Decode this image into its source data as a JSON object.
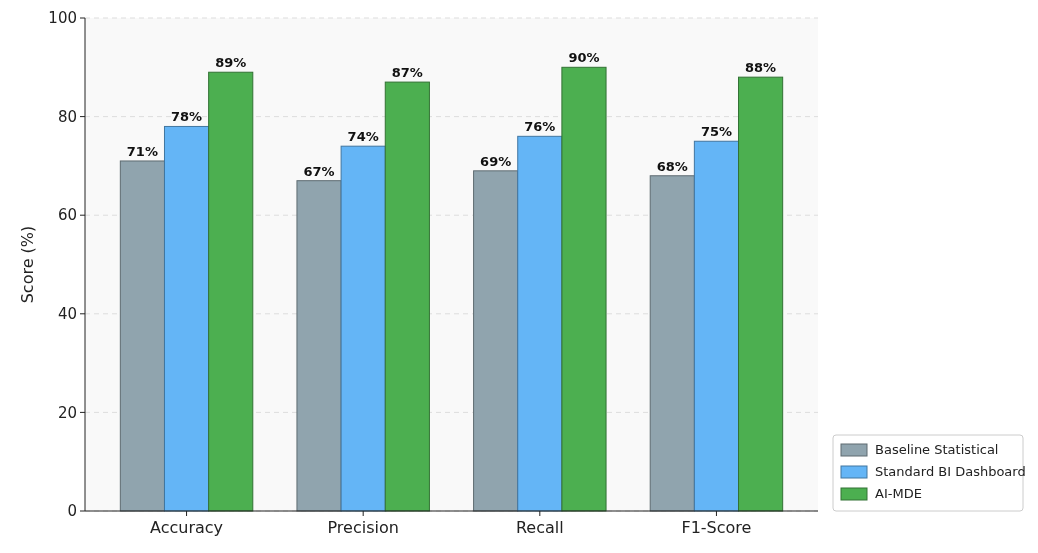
{
  "chart_data": {
    "type": "bar",
    "ylabel": "Score (%)",
    "categories": [
      "Accuracy",
      "Precision",
      "Recall",
      "F1-Score"
    ],
    "series": [
      {
        "name": "Baseline Statistical",
        "color": "#90a4ae",
        "values": [
          71,
          67,
          69,
          68
        ],
        "value_labels": [
          "71%",
          "67%",
          "69%",
          "68%"
        ]
      },
      {
        "name": "Standard BI Dashboard",
        "color": "#64b5f6",
        "values": [
          78,
          74,
          76,
          75
        ],
        "value_labels": [
          "78%",
          "74%",
          "76%",
          "75%"
        ]
      },
      {
        "name": "AI-MDE",
        "color": "#4caf50",
        "values": [
          89,
          87,
          90,
          88
        ],
        "value_labels": [
          "89%",
          "87%",
          "90%",
          "88%"
        ]
      }
    ],
    "ylim": [
      0,
      100
    ],
    "yticks": [
      0,
      20,
      40,
      60,
      80,
      100
    ],
    "grid": "y",
    "legend": "bottom right"
  }
}
